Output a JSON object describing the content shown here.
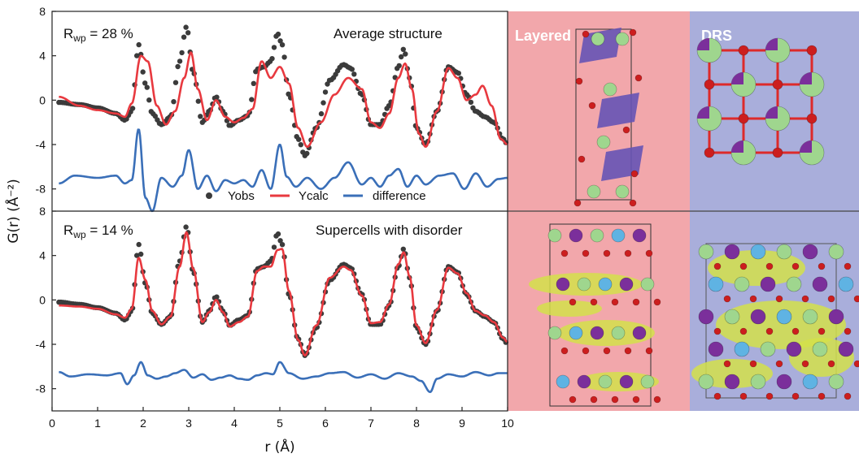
{
  "chart_data": [
    {
      "type": "line",
      "annotation_left": "R<sub>wp</sub> = 28 %",
      "annotation_left_text": "Rwp = 28 %",
      "annotation_right": "Average structure",
      "xlabel": "r (Å)",
      "ylabel": "G(r) (Å⁻²)",
      "xlim": [
        0,
        10
      ],
      "ylim": [
        -10,
        8
      ],
      "yticks": [
        8,
        4,
        0,
        -4,
        -8
      ],
      "series": [
        {
          "name": "Yobs",
          "style": "points",
          "color": "#3b3b3b",
          "x": [
            0.15,
            0.6,
            1.0,
            1.4,
            1.6,
            1.75,
            1.9,
            2.05,
            2.2,
            2.4,
            2.6,
            2.8,
            2.95,
            3.1,
            3.3,
            3.45,
            3.6,
            3.75,
            3.9,
            4.1,
            4.3,
            4.5,
            4.65,
            4.8,
            4.95,
            5.05,
            5.2,
            5.4,
            5.55,
            5.8,
            6.1,
            6.4,
            6.55,
            6.8,
            7.0,
            7.2,
            7.4,
            7.6,
            7.72,
            7.85,
            8.0,
            8.2,
            8.45,
            8.7,
            8.9,
            9.1,
            9.3,
            9.5,
            9.7,
            9.9,
            10.0
          ],
          "y": [
            -0.2,
            -0.4,
            -0.7,
            -1.2,
            -1.8,
            -1.0,
            5.0,
            1.5,
            -1.2,
            -2.2,
            -1.5,
            3.5,
            6.6,
            2.5,
            -2.0,
            -1.0,
            0.3,
            -1.0,
            -2.3,
            -1.8,
            -1.4,
            2.8,
            3.0,
            3.5,
            6.0,
            5.0,
            0.5,
            -3.5,
            -5.0,
            -2.5,
            1.8,
            3.2,
            2.9,
            0.5,
            -2.2,
            -2.2,
            -0.5,
            3.0,
            4.6,
            2.0,
            -2.5,
            -4.0,
            -1.0,
            3.0,
            2.5,
            0.5,
            -1.0,
            -1.5,
            -2.0,
            -3.5,
            -4.0
          ]
        },
        {
          "name": "Ycalc",
          "style": "line",
          "color": "#e8393f",
          "x": [
            0.15,
            0.6,
            1.0,
            1.4,
            1.6,
            1.75,
            1.95,
            2.1,
            2.3,
            2.5,
            2.7,
            2.9,
            3.05,
            3.2,
            3.4,
            3.6,
            3.8,
            4.0,
            4.2,
            4.4,
            4.6,
            4.8,
            5.0,
            5.2,
            5.4,
            5.6,
            5.9,
            6.2,
            6.5,
            6.8,
            7.0,
            7.2,
            7.4,
            7.6,
            7.75,
            7.9,
            8.05,
            8.2,
            8.45,
            8.7,
            8.9,
            9.1,
            9.3,
            9.45,
            9.65,
            9.85,
            10.0
          ],
          "y": [
            0.3,
            -0.5,
            -0.9,
            -1.2,
            -1.5,
            -0.3,
            4.0,
            3.5,
            -0.5,
            -2.2,
            -1.0,
            2.0,
            4.3,
            1.0,
            -1.8,
            0.0,
            -1.5,
            -2.0,
            -1.6,
            -0.8,
            3.5,
            2.0,
            3.0,
            1.5,
            -2.5,
            -4.2,
            -2.0,
            0.5,
            2.0,
            1.0,
            -2.0,
            -2.5,
            -1.2,
            2.0,
            3.3,
            1.0,
            -3.0,
            -4.2,
            -1.0,
            2.9,
            2.0,
            0.0,
            0.5,
            1.3,
            -0.5,
            -3.5,
            -4.0
          ]
        },
        {
          "name": "difference",
          "style": "line",
          "color": "#3a6fb8",
          "x": [
            0.15,
            0.5,
            1.0,
            1.4,
            1.6,
            1.75,
            1.9,
            2.05,
            2.2,
            2.4,
            2.65,
            2.85,
            3.0,
            3.2,
            3.4,
            3.6,
            3.8,
            4.0,
            4.2,
            4.4,
            4.6,
            4.8,
            5.0,
            5.15,
            5.35,
            5.6,
            5.9,
            6.2,
            6.5,
            6.8,
            7.0,
            7.2,
            7.4,
            7.6,
            7.8,
            8.0,
            8.2,
            8.5,
            8.8,
            9.05,
            9.3,
            9.55,
            9.8,
            10.0
          ],
          "y": [
            -7.5,
            -6.8,
            -7.0,
            -6.8,
            -7.5,
            -7.2,
            -2.6,
            -8.8,
            -10.0,
            -7.0,
            -7.8,
            -6.8,
            -4.5,
            -8.0,
            -6.8,
            -8.2,
            -7.2,
            -7.5,
            -7.2,
            -7.8,
            -6.3,
            -8.0,
            -4.0,
            -6.9,
            -7.8,
            -7.0,
            -8.0,
            -7.0,
            -5.6,
            -7.6,
            -7.0,
            -7.8,
            -6.8,
            -6.2,
            -7.8,
            -6.8,
            -7.6,
            -6.8,
            -6.6,
            -8.0,
            -6.6,
            -7.8,
            -7.1,
            -7.0
          ]
        }
      ]
    },
    {
      "type": "line",
      "annotation_left": "R<sub>wp</sub> = 14 %",
      "annotation_left_text": "Rwp = 14 %",
      "annotation_right": "Supercells with disorder",
      "xlim": [
        0,
        10
      ],
      "ylim": [
        -10,
        8
      ],
      "yticks": [
        8,
        4,
        0,
        -4,
        -8
      ],
      "xticks": [
        0,
        1,
        2,
        3,
        4,
        5,
        6,
        7,
        8,
        9,
        10
      ],
      "series": [
        {
          "name": "Yobs",
          "style": "points",
          "color": "#3b3b3b",
          "x": [
            0.15,
            0.6,
            1.0,
            1.4,
            1.6,
            1.75,
            1.9,
            2.05,
            2.2,
            2.4,
            2.6,
            2.8,
            2.95,
            3.1,
            3.3,
            3.45,
            3.6,
            3.75,
            3.9,
            4.1,
            4.3,
            4.5,
            4.65,
            4.8,
            4.95,
            5.05,
            5.2,
            5.4,
            5.55,
            5.8,
            6.1,
            6.4,
            6.55,
            6.8,
            7.0,
            7.2,
            7.4,
            7.6,
            7.72,
            7.85,
            8.0,
            8.2,
            8.45,
            8.7,
            8.9,
            9.1,
            9.3,
            9.5,
            9.7,
            9.9,
            10.0
          ],
          "y": [
            -0.2,
            -0.4,
            -0.7,
            -1.2,
            -1.8,
            -1.0,
            5.0,
            1.5,
            -1.2,
            -2.2,
            -1.5,
            3.5,
            6.6,
            2.5,
            -2.0,
            -1.0,
            0.3,
            -1.0,
            -2.3,
            -1.8,
            -1.4,
            2.8,
            3.0,
            3.5,
            6.0,
            5.0,
            0.5,
            -3.5,
            -5.0,
            -2.5,
            1.8,
            3.2,
            2.9,
            0.5,
            -2.2,
            -2.2,
            -0.5,
            3.0,
            4.6,
            2.0,
            -2.5,
            -4.0,
            -1.0,
            3.0,
            2.5,
            0.5,
            -1.0,
            -1.5,
            -2.0,
            -3.5,
            -4.0
          ]
        },
        {
          "name": "Ycalc",
          "style": "line",
          "color": "#e8393f",
          "x": [
            0.15,
            0.6,
            1.0,
            1.4,
            1.6,
            1.75,
            1.9,
            2.05,
            2.2,
            2.4,
            2.6,
            2.8,
            2.95,
            3.1,
            3.3,
            3.45,
            3.6,
            3.75,
            3.9,
            4.1,
            4.3,
            4.5,
            4.65,
            4.8,
            4.95,
            5.05,
            5.2,
            5.4,
            5.55,
            5.8,
            6.1,
            6.4,
            6.55,
            6.8,
            7.0,
            7.2,
            7.4,
            7.6,
            7.72,
            7.85,
            8.0,
            8.2,
            8.45,
            8.7,
            8.9,
            9.1,
            9.3,
            9.5,
            9.7,
            9.9,
            10.0
          ],
          "y": [
            -0.5,
            -0.6,
            -0.8,
            -1.3,
            -1.6,
            -0.8,
            3.8,
            1.8,
            -1.0,
            -2.2,
            -1.5,
            3.0,
            6.1,
            2.8,
            -2.0,
            -1.1,
            0.0,
            -1.1,
            -2.4,
            -2.0,
            -1.5,
            2.6,
            3.0,
            3.0,
            4.5,
            4.6,
            0.8,
            -3.6,
            -5.0,
            -2.3,
            2.0,
            3.0,
            2.7,
            0.4,
            -2.1,
            -2.0,
            -0.4,
            3.2,
            4.3,
            2.1,
            -2.3,
            -3.9,
            -0.9,
            2.9,
            2.4,
            0.6,
            -1.0,
            -1.4,
            -2.0,
            -3.4,
            -3.8
          ]
        },
        {
          "name": "difference",
          "style": "line",
          "color": "#3a6fb8",
          "x": [
            0.15,
            0.4,
            0.8,
            1.2,
            1.5,
            1.65,
            1.8,
            1.95,
            2.1,
            2.3,
            2.5,
            2.7,
            2.9,
            3.1,
            3.3,
            3.5,
            3.7,
            3.9,
            4.1,
            4.3,
            4.5,
            4.7,
            4.85,
            5.0,
            5.2,
            5.5,
            5.8,
            6.1,
            6.4,
            6.7,
            7.0,
            7.3,
            7.6,
            7.9,
            8.1,
            8.3,
            8.45,
            8.7,
            9.0,
            9.3,
            9.6,
            9.8,
            10.0
          ],
          "y": [
            -6.5,
            -6.9,
            -6.7,
            -6.8,
            -6.6,
            -7.6,
            -6.8,
            -5.6,
            -6.8,
            -7.1,
            -6.9,
            -6.6,
            -6.3,
            -7.0,
            -6.7,
            -7.2,
            -7.0,
            -6.8,
            -7.1,
            -7.2,
            -6.8,
            -6.6,
            -6.7,
            -5.6,
            -6.6,
            -7.1,
            -6.9,
            -6.6,
            -6.5,
            -7.0,
            -6.7,
            -7.1,
            -6.6,
            -6.9,
            -7.3,
            -8.3,
            -7.1,
            -6.7,
            -6.9,
            -6.5,
            -6.8,
            -6.6,
            -6.6
          ]
        }
      ]
    }
  ],
  "legend": [
    "Yobs",
    "Ycalc",
    "difference"
  ],
  "panels": {
    "layered_label": "Layered",
    "drs_label": "DRS",
    "colors": {
      "layered_bg": "#f2a7ab",
      "drs_bg": "#a9aedb",
      "oxygen": "#cc1e1e",
      "lithium": "#9fd68e",
      "transition_metal": "#7b2f9b",
      "cobalt_blue": "#5fb3e3",
      "density_isosurface": "#d4e04a",
      "octahedra": "#6654b5"
    }
  }
}
